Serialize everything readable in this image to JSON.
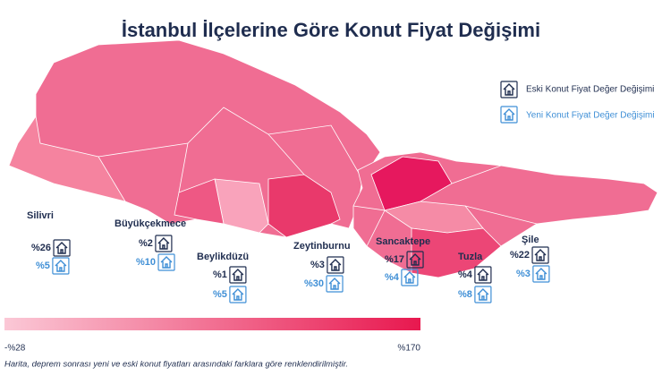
{
  "title": "İstanbul İlçelerine Göre Konut Fiyat Değişimi",
  "legend": {
    "old": "Eski Konut Fiyat Değer Değişimi",
    "new": "Yeni Konut Fiyat Değer Değişimi"
  },
  "districts": [
    {
      "name": "Silivri",
      "old": "%26",
      "new": "%5"
    },
    {
      "name": "Büyükçekmece",
      "old": "%2",
      "new": "%10"
    },
    {
      "name": "Beylikdüzü",
      "old": "%1",
      "new": "%5"
    },
    {
      "name": "Zeytinburnu",
      "old": "%3",
      "new": "%30"
    },
    {
      "name": "Sancaktepe",
      "old": "%17",
      "new": "%4"
    },
    {
      "name": "Tuzla",
      "old": "%4",
      "new": "%8"
    },
    {
      "name": "Şile",
      "old": "%22",
      "new": "%3"
    }
  ],
  "scale": {
    "min": "-%28",
    "max": "%170"
  },
  "footnote": "Harita, deprem sonrası yeni ve eski konut fiyatları arasındaki farklara göre renklendirilmiştir."
}
